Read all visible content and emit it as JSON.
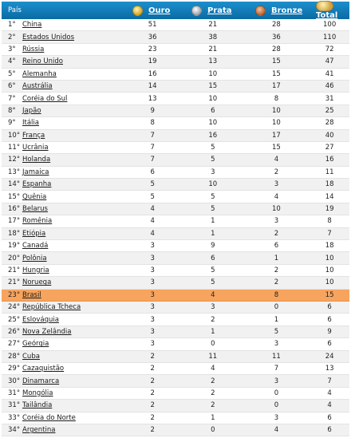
{
  "header": {
    "country": "País",
    "gold": "Ouro",
    "silver": "Prata",
    "bronze": "Bronze",
    "total": "Total"
  },
  "highlight_color": "#f6a45e",
  "header_color": "#1180c0",
  "rows": [
    {
      "rank": "1°",
      "country": "China",
      "gold": "51",
      "silver": "21",
      "bronze": "28",
      "total": "100"
    },
    {
      "rank": "2°",
      "country": "Estados Unidos",
      "gold": "36",
      "silver": "38",
      "bronze": "36",
      "total": "110"
    },
    {
      "rank": "3°",
      "country": "Rússia",
      "gold": "23",
      "silver": "21",
      "bronze": "28",
      "total": "72"
    },
    {
      "rank": "4°",
      "country": "Reino Unido",
      "gold": "19",
      "silver": "13",
      "bronze": "15",
      "total": "47"
    },
    {
      "rank": "5°",
      "country": "Alemanha",
      "gold": "16",
      "silver": "10",
      "bronze": "15",
      "total": "41"
    },
    {
      "rank": "6°",
      "country": "Austrália",
      "gold": "14",
      "silver": "15",
      "bronze": "17",
      "total": "46"
    },
    {
      "rank": "7°",
      "country": "Coréia do Sul",
      "gold": "13",
      "silver": "10",
      "bronze": "8",
      "total": "31"
    },
    {
      "rank": "8°",
      "country": "Japão",
      "gold": "9",
      "silver": "6",
      "bronze": "10",
      "total": "25"
    },
    {
      "rank": "9°",
      "country": "Itália",
      "gold": "8",
      "silver": "10",
      "bronze": "10",
      "total": "28"
    },
    {
      "rank": "10°",
      "country": "França",
      "gold": "7",
      "silver": "16",
      "bronze": "17",
      "total": "40"
    },
    {
      "rank": "11°",
      "country": "Ucrânia",
      "gold": "7",
      "silver": "5",
      "bronze": "15",
      "total": "27"
    },
    {
      "rank": "12°",
      "country": "Holanda",
      "gold": "7",
      "silver": "5",
      "bronze": "4",
      "total": "16"
    },
    {
      "rank": "13°",
      "country": "Jamaica",
      "gold": "6",
      "silver": "3",
      "bronze": "2",
      "total": "11"
    },
    {
      "rank": "14°",
      "country": "Espanha",
      "gold": "5",
      "silver": "10",
      "bronze": "3",
      "total": "18"
    },
    {
      "rank": "15°",
      "country": "Quênia",
      "gold": "5",
      "silver": "5",
      "bronze": "4",
      "total": "14"
    },
    {
      "rank": "16°",
      "country": "Belarus",
      "gold": "4",
      "silver": "5",
      "bronze": "10",
      "total": "19"
    },
    {
      "rank": "17°",
      "country": "Romênia",
      "gold": "4",
      "silver": "1",
      "bronze": "3",
      "total": "8"
    },
    {
      "rank": "18°",
      "country": "Etiópia",
      "gold": "4",
      "silver": "1",
      "bronze": "2",
      "total": "7"
    },
    {
      "rank": "19°",
      "country": "Canadá",
      "gold": "3",
      "silver": "9",
      "bronze": "6",
      "total": "18"
    },
    {
      "rank": "20°",
      "country": "Polônia",
      "gold": "3",
      "silver": "6",
      "bronze": "1",
      "total": "10"
    },
    {
      "rank": "21°",
      "country": "Hungria",
      "gold": "3",
      "silver": "5",
      "bronze": "2",
      "total": "10"
    },
    {
      "rank": "21°",
      "country": "Noruega",
      "gold": "3",
      "silver": "5",
      "bronze": "2",
      "total": "10"
    },
    {
      "rank": "23°",
      "country": "Brasil",
      "gold": "3",
      "silver": "4",
      "bronze": "8",
      "total": "15",
      "highlight": true
    },
    {
      "rank": "24°",
      "country": "República Tcheca",
      "gold": "3",
      "silver": "3",
      "bronze": "0",
      "total": "6"
    },
    {
      "rank": "25°",
      "country": "Eslováquia",
      "gold": "3",
      "silver": "2",
      "bronze": "1",
      "total": "6"
    },
    {
      "rank": "26°",
      "country": "Nova Zelândia",
      "gold": "3",
      "silver": "1",
      "bronze": "5",
      "total": "9"
    },
    {
      "rank": "27°",
      "country": "Geórgia",
      "gold": "3",
      "silver": "0",
      "bronze": "3",
      "total": "6"
    },
    {
      "rank": "28°",
      "country": "Cuba",
      "gold": "2",
      "silver": "11",
      "bronze": "11",
      "total": "24"
    },
    {
      "rank": "29°",
      "country": "Cazaquistão",
      "gold": "2",
      "silver": "4",
      "bronze": "7",
      "total": "13"
    },
    {
      "rank": "30°",
      "country": "Dinamarca",
      "gold": "2",
      "silver": "2",
      "bronze": "3",
      "total": "7"
    },
    {
      "rank": "31°",
      "country": "Mongólia",
      "gold": "2",
      "silver": "2",
      "bronze": "0",
      "total": "4"
    },
    {
      "rank": "31°",
      "country": "Tailândia",
      "gold": "2",
      "silver": "2",
      "bronze": "0",
      "total": "4"
    },
    {
      "rank": "33°",
      "country": "Coréia do Norte",
      "gold": "2",
      "silver": "1",
      "bronze": "3",
      "total": "6"
    },
    {
      "rank": "34°",
      "country": "Argentina",
      "gold": "2",
      "silver": "0",
      "bronze": "4",
      "total": "6"
    }
  ]
}
